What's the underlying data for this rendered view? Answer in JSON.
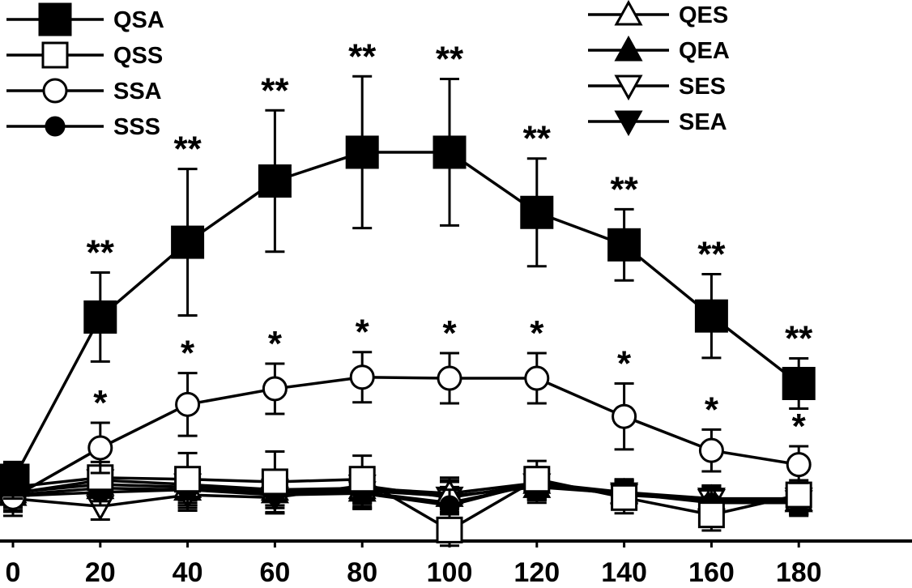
{
  "chart_data": {
    "type": "line",
    "x": [
      0,
      20,
      40,
      60,
      80,
      100,
      120,
      140,
      160,
      180
    ],
    "xlim": [
      0,
      200
    ],
    "ylim": [
      0,
      100
    ],
    "series": [
      {
        "name": "QSA",
        "marker": "square-filled",
        "values": [
          11.3,
          42.5,
          56.8,
          68.5,
          74.0,
          74.0,
          62.5,
          56.3,
          42.7,
          29.8
        ],
        "errors": [
          3.5,
          8.5,
          14.0,
          13.5,
          14.5,
          14.0,
          10.3,
          6.8,
          8.0,
          4.8
        ],
        "stars": [
          "",
          "**",
          "**",
          "**",
          "**",
          "**",
          "**",
          "**",
          "**",
          "**"
        ]
      },
      {
        "name": "QSS",
        "marker": "square-open",
        "values": [
          10.0,
          11.8,
          11.5,
          11.0,
          11.5,
          1.8,
          11.5,
          8.0,
          4.7,
          8.5
        ],
        "errors": [
          4.5,
          3.0,
          5.0,
          5.8,
          4.5,
          3.0,
          3.5,
          3.0,
          3.0,
          2.8
        ],
        "stars": [
          "",
          "",
          "",
          "",
          "",
          "",
          "",
          "",
          "",
          ""
        ]
      },
      {
        "name": "SSA",
        "marker": "circle-open",
        "values": [
          8.0,
          17.5,
          25.8,
          28.8,
          31.0,
          30.8,
          30.8,
          23.5,
          17.0,
          14.3
        ],
        "errors": [
          3.5,
          4.8,
          6.0,
          4.8,
          4.8,
          4.8,
          4.8,
          6.3,
          4.0,
          3.5
        ],
        "stars": [
          "",
          "*",
          "*",
          "*",
          "*",
          "*",
          "*",
          "*",
          "*",
          "*"
        ]
      },
      {
        "name": "SSS",
        "marker": "circle-filled",
        "values": [
          8.3,
          9.0,
          9.5,
          8.5,
          8.8,
          6.5,
          10.8,
          8.8,
          7.0,
          7.0
        ],
        "errors": [
          3.0,
          2.5,
          3.5,
          3.5,
          3.0,
          3.0,
          3.0,
          2.5,
          2.5,
          2.5
        ],
        "stars": [
          "",
          "",
          "",
          "",
          "",
          "",
          "",
          "",
          "",
          ""
        ]
      },
      {
        "name": "QES",
        "marker": "triangle-up-open",
        "values": [
          9.0,
          10.5,
          10.0,
          9.5,
          9.8,
          8.8,
          10.8,
          9.0,
          7.8,
          7.5
        ],
        "errors": [
          3.0,
          2.5,
          3.0,
          3.0,
          3.0,
          3.0,
          3.0,
          2.5,
          2.5,
          2.5
        ],
        "stars": [
          "",
          "",
          "",
          "",
          "",
          "",
          "",
          "",
          "",
          ""
        ]
      },
      {
        "name": "QEA",
        "marker": "triangle-up-filled",
        "values": [
          8.5,
          9.8,
          9.5,
          9.0,
          9.3,
          8.3,
          10.0,
          8.8,
          7.5,
          7.3
        ],
        "errors": [
          3.0,
          2.5,
          3.0,
          3.0,
          3.0,
          3.0,
          3.0,
          2.5,
          2.5,
          2.5
        ],
        "stars": [
          "",
          "",
          "",
          "",
          "",
          "",
          "",
          "",
          "",
          ""
        ]
      },
      {
        "name": "SES",
        "marker": "triangle-down-open",
        "values": [
          7.8,
          6.3,
          8.5,
          8.0,
          10.3,
          8.0,
          10.5,
          8.5,
          7.5,
          7.3
        ],
        "errors": [
          2.5,
          2.5,
          3.0,
          3.0,
          3.0,
          3.0,
          3.0,
          2.5,
          2.5,
          2.5
        ],
        "stars": [
          "",
          "",
          "",
          "",
          "",
          "",
          "",
          "",
          "",
          ""
        ]
      },
      {
        "name": "SEA",
        "marker": "triangle-down-filled",
        "values": [
          8.8,
          11.3,
          10.5,
          9.5,
          9.0,
          7.0,
          10.5,
          8.8,
          7.8,
          7.8
        ],
        "errors": [
          2.5,
          2.5,
          3.0,
          3.0,
          3.0,
          3.0,
          3.0,
          2.5,
          2.5,
          2.5
        ],
        "stars": [
          "",
          "",
          "",
          "",
          "",
          "",
          "",
          "",
          "",
          ""
        ]
      }
    ],
    "legend": [
      {
        "group": "left",
        "items": [
          "QSA",
          "QSS",
          "SSA",
          "SSS"
        ]
      },
      {
        "group": "right",
        "items": [
          "QES",
          "QEA",
          "SES",
          "SEA"
        ]
      }
    ],
    "xlabel": "",
    "ylabel": "",
    "title": ""
  },
  "colors": {
    "ink": "#000000",
    "background": "#ffffff"
  }
}
